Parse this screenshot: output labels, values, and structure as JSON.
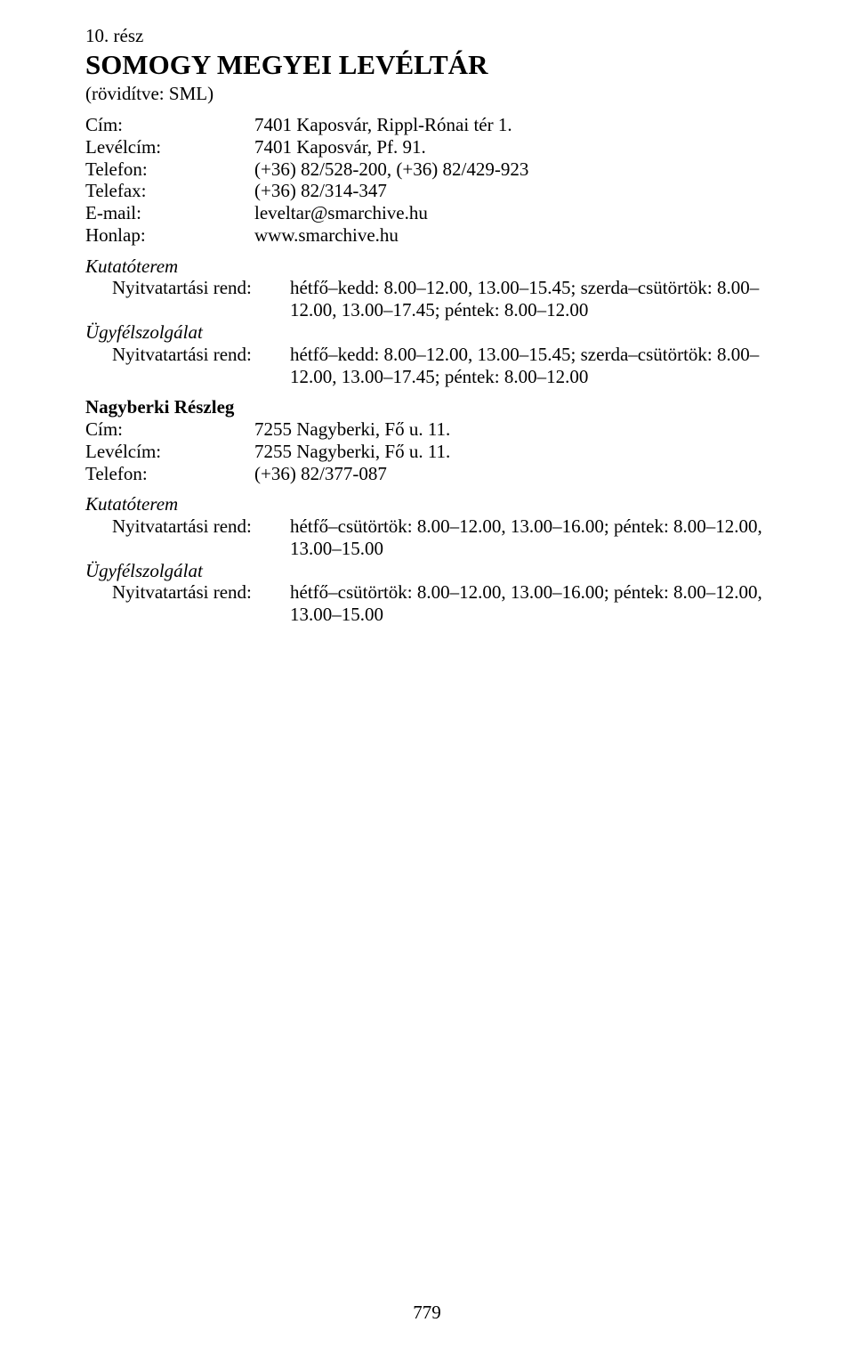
{
  "header": {
    "section_number": "10. rész",
    "org_name": "SOMOGY MEGYEI LEVÉLTÁR",
    "abbrev": "(rövidítve: SML)"
  },
  "contact1": {
    "cim_label": "Cím:",
    "cim_value": "7401 Kaposvár, Rippl-Rónai tér 1.",
    "levelcim_label": "Levélcím:",
    "levelcim_value": "7401 Kaposvár, Pf. 91.",
    "telefon_label": "Telefon:",
    "telefon_value": "(+36) 82/528-200, (+36) 82/429-923",
    "telefax_label": "Telefax:",
    "telefax_value": "(+36) 82/314-347",
    "email_label": "E-mail:",
    "email_value": "leveltar@smarchive.hu",
    "honlap_label": "Honlap:",
    "honlap_value": "www.smarchive.hu"
  },
  "group1": {
    "kutatoterem_label": "Kutatóterem",
    "nyitva_label": "Nyitvatartási rend:",
    "nyitva_value": "hétfő–kedd: 8.00–12.00, 13.00–15.45; szerda–csütörtök: 8.00–12.00, 13.00–17.45; péntek: 8.00–12.00",
    "ugyfel_label": "Ügyfélszolgálat",
    "nyitva2_label": "Nyitvatartási rend:",
    "nyitva2_value": "hétfő–kedd: 8.00–12.00, 13.00–15.45; szerda–csütörtök: 8.00–12.00, 13.00–17.45; péntek: 8.00–12.00"
  },
  "branch": {
    "title": "Nagyberki Részleg",
    "cim_label": "Cím:",
    "cim_value": "7255 Nagyberki, Fő u. 11.",
    "levelcim_label": "Levélcím:",
    "levelcim_value": "7255 Nagyberki, Fő u. 11.",
    "telefon_label": "Telefon:",
    "telefon_value": "(+36) 82/377-087"
  },
  "group2": {
    "kutatoterem_label": "Kutatóterem",
    "nyitva_label": "Nyitvatartási rend:",
    "nyitva_value": "hétfő–csütörtök: 8.00–12.00, 13.00–16.00; péntek: 8.00–12.00, 13.00–15.00",
    "ugyfel_label": "Ügyfélszolgálat",
    "nyitva2_label": "Nyitvatartási rend:",
    "nyitva2_value": "hétfő–csütörtök: 8.00–12.00, 13.00–16.00; péntek: 8.00–12.00, 13.00–15.00"
  },
  "footer": {
    "page_number": "779"
  }
}
